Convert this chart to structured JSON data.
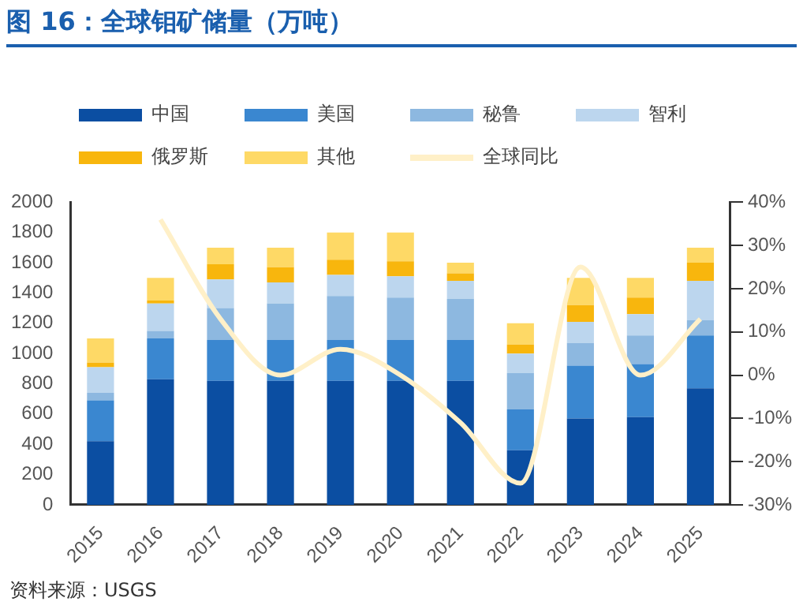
{
  "chart_data": {
    "type": "bar",
    "title": "图 16：全球钼矿储量（万吨）",
    "stacked": true,
    "legend": "top",
    "grid": false,
    "categories": [
      "2015",
      "2016",
      "2017",
      "2018",
      "2019",
      "2020",
      "2021",
      "2022",
      "2023",
      "2024",
      "2025"
    ],
    "series": [
      {
        "name": "中国",
        "color": "#0b4ea2",
        "values": [
          420,
          830,
          820,
          820,
          820,
          820,
          820,
          360,
          570,
          580,
          770
        ]
      },
      {
        "name": "美国",
        "color": "#3a87d0",
        "values": [
          270,
          270,
          270,
          270,
          270,
          270,
          270,
          270,
          350,
          350,
          350
        ]
      },
      {
        "name": "秘鲁",
        "color": "#8db8e0",
        "values": [
          50,
          50,
          210,
          240,
          290,
          280,
          270,
          240,
          150,
          190,
          100
        ]
      },
      {
        "name": "智利",
        "color": "#bcd6ee",
        "values": [
          170,
          180,
          190,
          140,
          140,
          140,
          120,
          130,
          140,
          140,
          260
        ]
      },
      {
        "name": "俄罗斯",
        "color": "#f8b60d",
        "values": [
          30,
          20,
          100,
          100,
          100,
          100,
          50,
          60,
          110,
          110,
          120
        ]
      },
      {
        "name": "其他",
        "color": "#fed966",
        "values": [
          160,
          150,
          110,
          130,
          180,
          190,
          70,
          140,
          180,
          130,
          100
        ]
      },
      {
        "name": "全球同比",
        "type": "line",
        "axis": "y2",
        "color": "#fff0c8",
        "values": [
          null,
          36,
          13,
          0,
          6,
          0,
          -11,
          -25,
          25,
          0,
          13
        ]
      }
    ],
    "ylim": [
      0,
      2000
    ],
    "yticks": [
      0,
      200,
      400,
      600,
      800,
      1000,
      1200,
      1400,
      1600,
      1800,
      2000
    ],
    "y2lim": [
      -30,
      40
    ],
    "y2ticks": [
      {
        "value": -30,
        "label": "-30%"
      },
      {
        "value": -20,
        "label": "-20%"
      },
      {
        "value": -10,
        "label": "-10%"
      },
      {
        "value": 0,
        "label": "0%"
      },
      {
        "value": 10,
        "label": "10%"
      },
      {
        "value": 20,
        "label": "20%"
      },
      {
        "value": 30,
        "label": "30%"
      },
      {
        "value": 40,
        "label": "40%"
      }
    ],
    "annotations": [
      "资料来源：USGS"
    ]
  }
}
